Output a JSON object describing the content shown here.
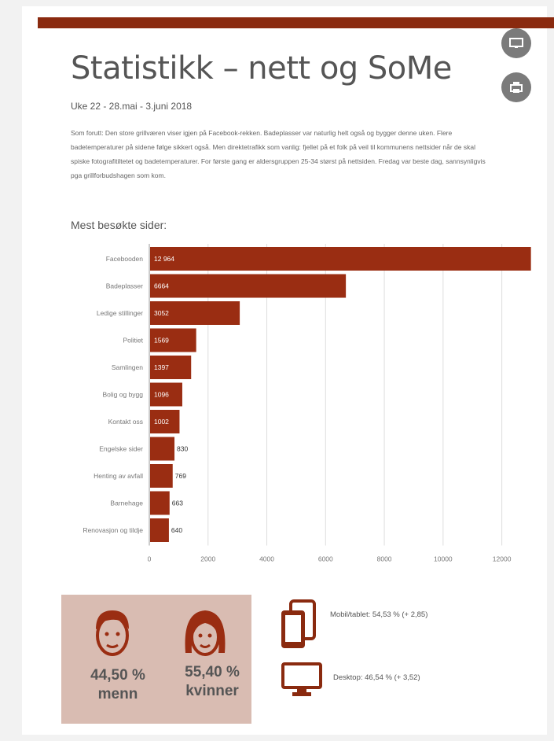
{
  "header": {
    "title": "Statistikk – nett og SoMe",
    "subtitle": "Uke 22 - 28.mai - 3.juni 2018",
    "intro": "Som forutt: Den store grillværen viser igjen på Facebook-rekken. Badeplasser var naturlig helt også og bygger denne uken. Flere badetemperaturer på sidene følge sikkert også. Men direktetrafikk som vanlig: fjellet på et folk på veil til kommunens nettsider når de skal spiske fotografitiltetet og badetemperaturer. For første gang er aldersgruppen 25-34 størst på nettsiden. Fredag var beste dag, sannsynligvis pga grillforbudshagen som kom."
  },
  "toolbar": {
    "screen_icon": "monitor-icon",
    "print_icon": "print-icon"
  },
  "chart_data": {
    "type": "bar",
    "orientation": "horizontal",
    "title": "Mest besøkte sider:",
    "categories": [
      "Facebooden",
      "Badeplasser",
      "Ledige stillinger",
      "Politiet",
      "Samlingen",
      "Bolig og bygg",
      "Kontakt oss",
      "Engelske sider",
      "Henting av avfall",
      "Barnehage",
      "Renovasjon og tildje"
    ],
    "values": [
      12964,
      6664,
      3052,
      1569,
      1397,
      1096,
      1002,
      830,
      769,
      663,
      640
    ],
    "value_labels": [
      "12 964",
      "6664",
      "3052",
      "1569",
      "1397",
      "1096",
      "1002",
      "830",
      "769",
      "663",
      "640"
    ],
    "xlim": [
      0,
      13000
    ],
    "x_ticks": [
      0,
      2000,
      4000,
      6000,
      8000,
      10000,
      12000
    ],
    "x_tick_labels": [
      "0",
      "2000",
      "4000",
      "6000",
      "8000",
      "10000",
      "12000"
    ],
    "grid": true,
    "color": "#9a2d12"
  },
  "gender": {
    "male_pct": "44,50 %",
    "male_label": "menn",
    "female_pct": "55,40 %",
    "female_label": "kvinner",
    "box_color": "#d9bcb2"
  },
  "devices": {
    "mobile_text": "Mobil/tablet: 54,53 % (+ 2,85)",
    "desktop_text": "Desktop: 46,54 % (+ 3,52)",
    "icon_color": "#8a2a0f"
  },
  "colors": {
    "accent": "#8a2a0f",
    "bar": "#9a2d12"
  }
}
